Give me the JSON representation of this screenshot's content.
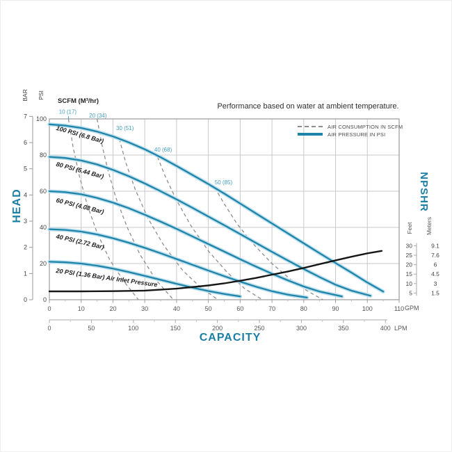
{
  "title": "Performance based on water at ambient temperature.",
  "axis_labels": {
    "head": "HEAD",
    "capacity": "CAPACITY",
    "npshr": "NPSHR",
    "bar": "BAR",
    "psi": "PSI",
    "feet": "Feet",
    "meters": "Meters",
    "gpm_unit": "GPM",
    "lpm_unit": "LPM",
    "scfm_header": "SCFM (M³/hr)"
  },
  "legend": [
    {
      "label": "AIR CONSUMPTION IN SCFM",
      "style": "dashed",
      "color": "#8d8d8d"
    },
    {
      "label": "AIR PRESSURE IN PSI",
      "style": "solid",
      "color": "#1f85a8"
    }
  ],
  "colors": {
    "accent_teal": "#1b7fa6",
    "curve_core": "#1f85a8",
    "curve_halo": "#bcdfee",
    "dashed_gray": "#8d8d8d",
    "npshr_black": "#161616",
    "grid": "#c9c9c9",
    "border": "#9a9a9a",
    "tick_text": "#555555",
    "scfm_label_teal": "#45a1c2",
    "curve_label_text": "#1f1f1f"
  },
  "chart_data": {
    "type": "line",
    "title": "Performance based on water at ambient temperature.",
    "xlabel": "CAPACITY",
    "x_axis": {
      "gpm_ticks": [
        0,
        10,
        20,
        30,
        40,
        50,
        60,
        70,
        80,
        90,
        100,
        110
      ],
      "gpm_range": [
        0,
        110
      ],
      "lpm_ticks": [
        0,
        50,
        100,
        150,
        200,
        250,
        300,
        350,
        400
      ],
      "lpm_range": [
        0,
        400
      ]
    },
    "y_axis_left": {
      "label": "HEAD",
      "psi_ticks": [
        0,
        20,
        40,
        60,
        80,
        100
      ],
      "psi_range": [
        0,
        100
      ],
      "bar_ticks": [
        0,
        1,
        2,
        3,
        4,
        5,
        6,
        7
      ],
      "bar_range": [
        0,
        7
      ]
    },
    "y_axis_right": {
      "label": "NPSHR",
      "feet_ticks": [
        30,
        25,
        20,
        15,
        10,
        5
      ],
      "meters_ticks": [
        "9.1",
        "7.6",
        "6",
        "4.5",
        "3",
        "1.5"
      ]
    },
    "grid": true,
    "legend_position": "top-right",
    "pressure_curves": [
      {
        "name": "air-pressure-100psi",
        "label": "100 PSI (6.8 Bar)",
        "label_at": [
          2,
          94
        ],
        "label_angle": 16,
        "points_gpm_psi": [
          [
            0,
            97
          ],
          [
            5,
            96.3
          ],
          [
            10,
            95
          ],
          [
            15,
            93
          ],
          [
            20,
            90.3
          ],
          [
            25,
            87
          ],
          [
            30,
            83.2
          ],
          [
            35,
            78.8
          ],
          [
            40,
            74
          ],
          [
            45,
            69
          ],
          [
            50,
            64
          ],
          [
            55,
            58.7
          ],
          [
            60,
            53.2
          ],
          [
            65,
            47.7
          ],
          [
            70,
            42.2
          ],
          [
            75,
            36.7
          ],
          [
            80,
            31.2
          ],
          [
            85,
            25.7
          ],
          [
            90,
            20.3
          ],
          [
            95,
            15
          ],
          [
            100,
            9.5
          ],
          [
            105,
            4.5
          ]
        ]
      },
      {
        "name": "air-pressure-80psi",
        "label": "80 PSI (5.44 Bar)",
        "label_at": [
          2,
          74
        ],
        "label_angle": 15,
        "points_gpm_psi": [
          [
            0,
            79
          ],
          [
            5,
            78.4
          ],
          [
            10,
            77
          ],
          [
            15,
            74.8
          ],
          [
            20,
            71.8
          ],
          [
            25,
            68.3
          ],
          [
            30,
            64.3
          ],
          [
            35,
            60
          ],
          [
            40,
            55.5
          ],
          [
            45,
            50.8
          ],
          [
            50,
            46
          ],
          [
            55,
            41.2
          ],
          [
            60,
            36.3
          ],
          [
            65,
            31.4
          ],
          [
            70,
            26.5
          ],
          [
            75,
            21.7
          ],
          [
            80,
            17
          ],
          [
            85,
            12.5
          ],
          [
            90,
            8.3
          ],
          [
            95,
            5
          ],
          [
            101,
            2.2
          ]
        ]
      },
      {
        "name": "air-pressure-60psi",
        "label": "60 PSI (4.08 Bar)",
        "label_at": [
          2,
          54
        ],
        "label_angle": 14,
        "points_gpm_psi": [
          [
            0,
            60
          ],
          [
            5,
            59.5
          ],
          [
            10,
            58.3
          ],
          [
            15,
            56.3
          ],
          [
            20,
            53.7
          ],
          [
            25,
            50.6
          ],
          [
            30,
            47
          ],
          [
            35,
            43.2
          ],
          [
            40,
            39.2
          ],
          [
            45,
            35
          ],
          [
            50,
            30.8
          ],
          [
            55,
            26.6
          ],
          [
            60,
            22.4
          ],
          [
            65,
            18.3
          ],
          [
            70,
            14.4
          ],
          [
            75,
            10.7
          ],
          [
            80,
            7.3
          ],
          [
            85,
            4.5
          ],
          [
            92,
            1.8
          ]
        ]
      },
      {
        "name": "air-pressure-40psi",
        "label": "40 PSI (2.72 Bar)",
        "label_at": [
          2,
          34
        ],
        "label_angle": 13,
        "points_gpm_psi": [
          [
            0,
            39
          ],
          [
            5,
            38.6
          ],
          [
            10,
            37.7
          ],
          [
            15,
            36.1
          ],
          [
            20,
            34
          ],
          [
            25,
            31.5
          ],
          [
            30,
            28.7
          ],
          [
            35,
            25.7
          ],
          [
            40,
            22.5
          ],
          [
            45,
            19.3
          ],
          [
            50,
            16.1
          ],
          [
            55,
            13
          ],
          [
            60,
            10
          ],
          [
            65,
            7.2
          ],
          [
            70,
            4.7
          ],
          [
            75,
            2.8
          ],
          [
            81,
            1.2
          ]
        ]
      },
      {
        "name": "air-pressure-20psi",
        "label": "20 PSI (1.36 Bar) Air Inlet Pressure",
        "label_at": [
          2,
          15
        ],
        "label_angle": 8,
        "points_gpm_psi": [
          [
            0,
            21
          ],
          [
            5,
            20.7
          ],
          [
            10,
            20
          ],
          [
            15,
            18.8
          ],
          [
            20,
            17.2
          ],
          [
            25,
            15.3
          ],
          [
            30,
            13.2
          ],
          [
            35,
            11
          ],
          [
            40,
            8.8
          ],
          [
            45,
            6.7
          ],
          [
            50,
            4.8
          ],
          [
            55,
            3.2
          ],
          [
            60,
            1.8
          ]
        ]
      }
    ],
    "consumption_curves": [
      {
        "name": "air-consumption-10scfm",
        "label": "10 (17)",
        "label_at": [
          3,
          104
        ],
        "points_gpm_psi": [
          [
            6,
            100
          ],
          [
            7.5,
            84
          ],
          [
            9.5,
            68
          ],
          [
            12,
            52
          ],
          [
            15,
            37
          ],
          [
            19,
            22
          ],
          [
            23.5,
            10
          ],
          [
            28,
            0
          ]
        ]
      },
      {
        "name": "air-consumption-20scfm",
        "label": "20 (34)",
        "label_at": [
          12.5,
          102
        ],
        "points_gpm_psi": [
          [
            15,
            100
          ],
          [
            16.5,
            86
          ],
          [
            18.5,
            71
          ],
          [
            21,
            56
          ],
          [
            24.5,
            40
          ],
          [
            28.5,
            25
          ],
          [
            33.5,
            11
          ],
          [
            39,
            0
          ]
        ]
      },
      {
        "name": "air-consumption-30scfm",
        "label": "30 (51)",
        "label_at": [
          21,
          95
        ],
        "points_gpm_psi": [
          [
            22,
            89
          ],
          [
            24,
            76
          ],
          [
            27,
            61
          ],
          [
            31,
            45
          ],
          [
            36,
            30
          ],
          [
            42,
            16
          ],
          [
            47.5,
            7
          ],
          [
            53,
            0
          ]
        ]
      },
      {
        "name": "air-consumption-40scfm",
        "label": "40 (68)",
        "label_at": [
          33,
          83
        ],
        "points_gpm_psi": [
          [
            34,
            79
          ],
          [
            36.5,
            68
          ],
          [
            40,
            55
          ],
          [
            44.5,
            41
          ],
          [
            50,
            27
          ],
          [
            56,
            15
          ],
          [
            61.5,
            6
          ],
          [
            67,
            0
          ]
        ]
      },
      {
        "name": "air-consumption-50scfm",
        "label": "50 (85)",
        "label_at": [
          52,
          65
        ],
        "points_gpm_psi": [
          [
            52,
            62
          ],
          [
            55,
            53
          ],
          [
            59,
            42
          ],
          [
            64,
            31
          ],
          [
            70,
            20
          ],
          [
            76,
            11
          ],
          [
            81,
            5
          ],
          [
            86,
            0
          ]
        ]
      }
    ],
    "npshr_curve": {
      "name": "npshr-curve",
      "points_gpm_ft": [
        [
          0,
          5.9
        ],
        [
          10,
          5.9
        ],
        [
          20,
          6
        ],
        [
          30,
          6.3
        ],
        [
          40,
          7.3
        ],
        [
          50,
          9
        ],
        [
          55,
          10.1
        ],
        [
          60,
          11.5
        ],
        [
          65,
          13
        ],
        [
          70,
          14.7
        ],
        [
          75,
          16.4
        ],
        [
          80,
          18.3
        ],
        [
          85,
          20.3
        ],
        [
          90,
          22.3
        ],
        [
          95,
          24.2
        ],
        [
          100,
          26
        ],
        [
          104.5,
          27.3
        ]
      ]
    }
  }
}
